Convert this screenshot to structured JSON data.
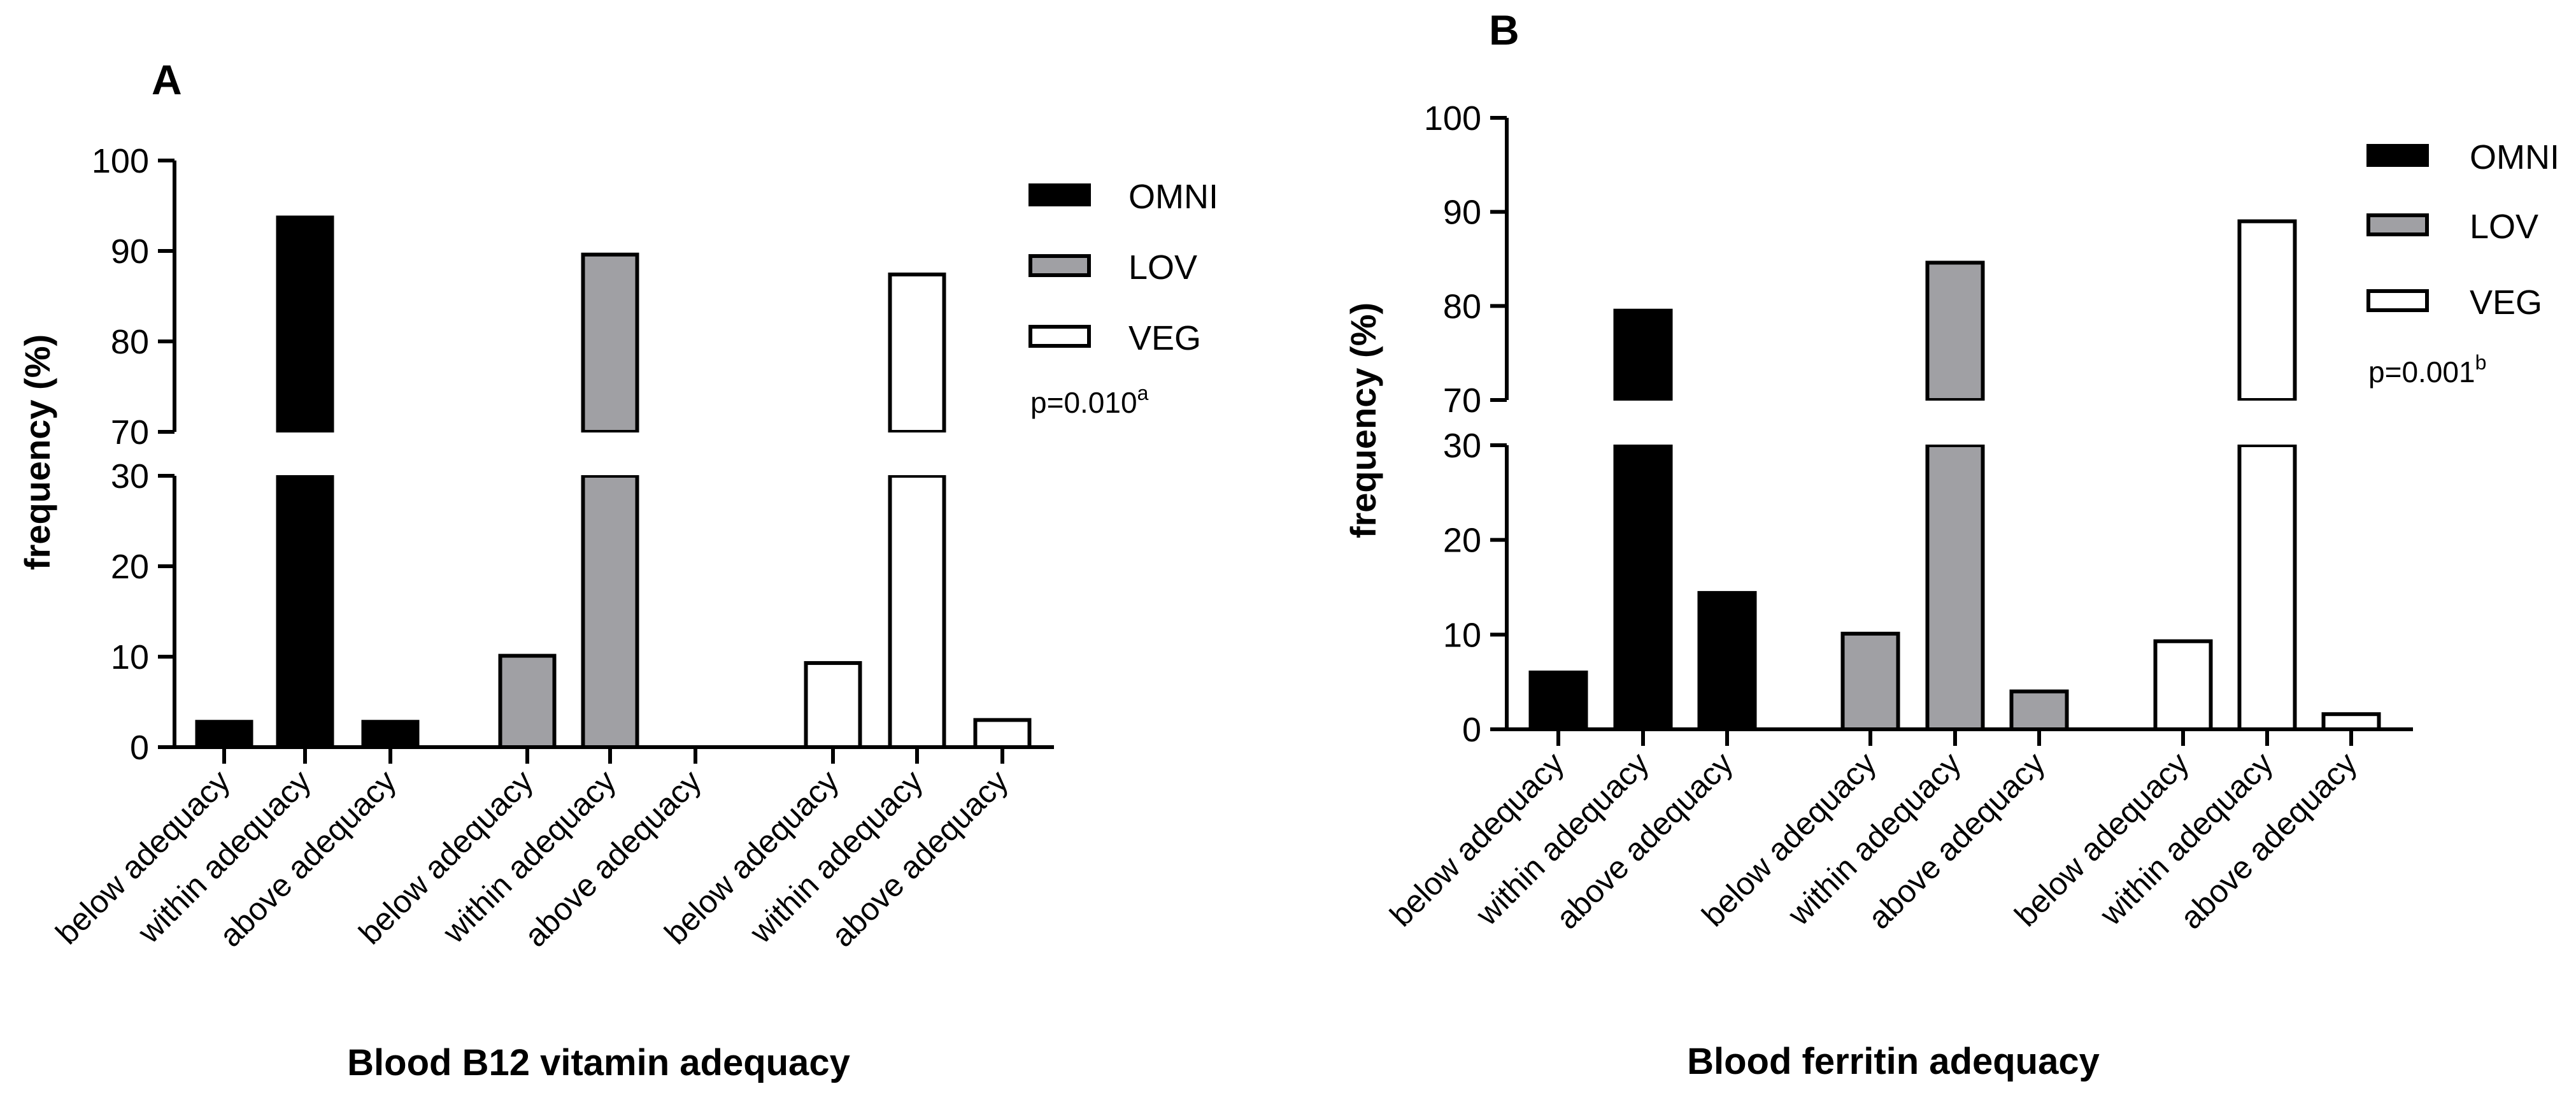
{
  "chart_data": [
    {
      "panel": "A",
      "type": "bar",
      "title": "",
      "xlabel": "Blood B12 vitamin adequacy",
      "ylabel": "frequency (%)",
      "categories": [
        "below adequacy",
        "within adequacy",
        "above adequacy"
      ],
      "series": [
        {
          "name": "OMNI",
          "color": "#000000",
          "values": [
            2.8,
            93.7,
            2.8
          ]
        },
        {
          "name": "LOV",
          "color": "#a0a0a4",
          "values": [
            10.1,
            89.6,
            0
          ]
        },
        {
          "name": "VEG",
          "color": "#ffffff",
          "values": [
            9.3,
            87.4,
            3.0
          ]
        }
      ],
      "y_segments": [
        [
          0,
          30
        ],
        [
          70,
          100
        ]
      ],
      "y_ticks_lower": [
        "0",
        "10",
        "20",
        "30"
      ],
      "y_ticks_upper": [
        "70",
        "80",
        "90",
        "100"
      ],
      "annotation": {
        "text": "p=0.010",
        "sup": "a"
      },
      "legend_position": "top-right"
    },
    {
      "panel": "B",
      "type": "bar",
      "title": "",
      "xlabel": "Blood ferritin adequacy",
      "ylabel": "frequency (%)",
      "categories": [
        "below adequacy",
        "within adequacy",
        "above adequacy"
      ],
      "series": [
        {
          "name": "OMNI",
          "color": "#000000",
          "values": [
            6.0,
            79.5,
            14.4
          ]
        },
        {
          "name": "LOV",
          "color": "#a0a0a4",
          "values": [
            10.1,
            84.6,
            4.0
          ]
        },
        {
          "name": "VEG",
          "color": "#ffffff",
          "values": [
            9.3,
            89.0,
            1.6
          ]
        }
      ],
      "y_segments": [
        [
          0,
          30
        ],
        [
          70,
          100
        ]
      ],
      "y_ticks_lower": [
        "0",
        "10",
        "20",
        "30"
      ],
      "y_ticks_upper": [
        "70",
        "80",
        "90",
        "100"
      ],
      "annotation": {
        "text": "p=0.001",
        "sup": "b"
      },
      "legend_position": "top-right"
    }
  ]
}
